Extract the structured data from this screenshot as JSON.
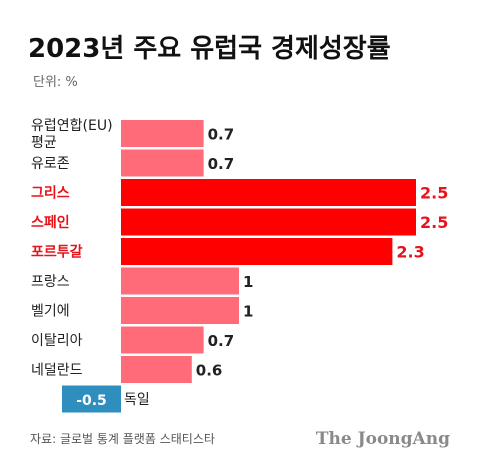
{
  "chart_data": {
    "type": "bar",
    "orientation": "horizontal",
    "title": "2023년 주요 유럽국 경제성장률",
    "unit_label": "단위: %",
    "categories": [
      [
        "유럽연합(EU)",
        "평균"
      ],
      [
        "유로존"
      ],
      [
        "그리스"
      ],
      [
        "스페인"
      ],
      [
        "포르투갈"
      ],
      [
        "프랑스"
      ],
      [
        "벨기에"
      ],
      [
        "이탈리아"
      ],
      [
        "네덜란드"
      ],
      [
        "독일"
      ]
    ],
    "values": [
      0.7,
      0.7,
      2.5,
      2.5,
      2.3,
      1,
      1,
      0.7,
      0.6,
      -0.5
    ],
    "value_labels": [
      "0.7",
      "0.7",
      "2.5",
      "2.5",
      "2.3",
      "1",
      "1",
      "0.7",
      "0.6",
      "-0.5"
    ],
    "highlighted": [
      false,
      false,
      true,
      true,
      true,
      false,
      false,
      false,
      false,
      false
    ],
    "colors": {
      "bar": "#ff6b78",
      "bar_highlight": "#ff0000",
      "bar_negative": "#2e8fbf",
      "text_highlight": "#e8131b"
    },
    "xlim": [
      -0.5,
      2.5
    ],
    "grid": false,
    "legend": "none"
  },
  "source": "자료: 글로벌 통계 플랫폼 스태티스타",
  "brand": "The JoongAng"
}
